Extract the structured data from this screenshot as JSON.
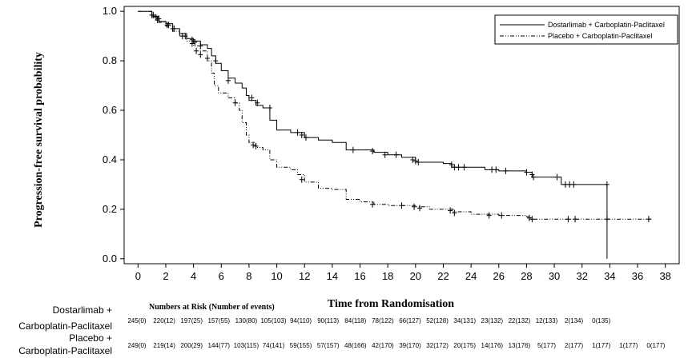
{
  "chart_data": {
    "type": "line",
    "xlabel": "Time from Randomisation",
    "ylabel": "Progression-free survival probability",
    "xlim": [
      -1,
      39
    ],
    "ylim": [
      -0.02,
      1.02
    ],
    "x_ticks": [
      "0",
      "2",
      "4",
      "6",
      "8",
      "10",
      "12",
      "14",
      "16",
      "18",
      "20",
      "22",
      "24",
      "26",
      "28",
      "30",
      "32",
      "34",
      "36",
      "38"
    ],
    "y_ticks": [
      "0.0",
      "0.2",
      "0.4",
      "0.6",
      "0.8",
      "1.0"
    ],
    "legend_position": "top-right",
    "series": [
      {
        "name": "Dostarlimab + Carboplatin-Paclitaxel",
        "color": "#000000",
        "points": [
          [
            0,
            1.0
          ],
          [
            1,
            0.98
          ],
          [
            1.5,
            0.96
          ],
          [
            2,
            0.95
          ],
          [
            2.5,
            0.93
          ],
          [
            3,
            0.91
          ],
          [
            3.5,
            0.89
          ],
          [
            4,
            0.88
          ],
          [
            4.5,
            0.865
          ],
          [
            5,
            0.85
          ],
          [
            5.3,
            0.82
          ],
          [
            5.6,
            0.79
          ],
          [
            6,
            0.76
          ],
          [
            6.5,
            0.73
          ],
          [
            7,
            0.71
          ],
          [
            7.5,
            0.69
          ],
          [
            7.8,
            0.66
          ],
          [
            8,
            0.64
          ],
          [
            8.5,
            0.62
          ],
          [
            9,
            0.61
          ],
          [
            9.5,
            0.56
          ],
          [
            10,
            0.52
          ],
          [
            11,
            0.51
          ],
          [
            12,
            0.49
          ],
          [
            13,
            0.48
          ],
          [
            14,
            0.47
          ],
          [
            15,
            0.44
          ],
          [
            16,
            0.44
          ],
          [
            17,
            0.43
          ],
          [
            18,
            0.42
          ],
          [
            19,
            0.41
          ],
          [
            20,
            0.39
          ],
          [
            22,
            0.385
          ],
          [
            22.6,
            0.37
          ],
          [
            24,
            0.37
          ],
          [
            25,
            0.36
          ],
          [
            26,
            0.355
          ],
          [
            28,
            0.35
          ],
          [
            28.4,
            0.33
          ],
          [
            30,
            0.33
          ],
          [
            30.5,
            0.3
          ],
          [
            31,
            0.3
          ],
          [
            33.8,
            0.3
          ],
          [
            33.8,
            0.0
          ]
        ],
        "censors": [
          [
            1.1,
            0.985
          ],
          [
            1.3,
            0.975
          ],
          [
            1.5,
            0.97
          ],
          [
            2.2,
            0.945
          ],
          [
            2.6,
            0.93
          ],
          [
            3.4,
            0.9
          ],
          [
            3.9,
            0.885
          ],
          [
            4.1,
            0.875
          ],
          [
            4.5,
            0.86
          ],
          [
            5.6,
            0.8
          ],
          [
            6.5,
            0.72
          ],
          [
            8.2,
            0.65
          ],
          [
            8.6,
            0.63
          ],
          [
            9.5,
            0.61
          ],
          [
            11.5,
            0.51
          ],
          [
            11.8,
            0.5
          ],
          [
            12.1,
            0.49
          ],
          [
            15.5,
            0.44
          ],
          [
            16.9,
            0.435
          ],
          [
            17.8,
            0.42
          ],
          [
            18.6,
            0.42
          ],
          [
            19.8,
            0.4
          ],
          [
            20,
            0.395
          ],
          [
            20.2,
            0.39
          ],
          [
            22.6,
            0.38
          ],
          [
            22.8,
            0.37
          ],
          [
            23.1,
            0.37
          ],
          [
            23.5,
            0.37
          ],
          [
            25.5,
            0.36
          ],
          [
            25.8,
            0.36
          ],
          [
            26.5,
            0.355
          ],
          [
            28,
            0.35
          ],
          [
            28.4,
            0.34
          ],
          [
            28.5,
            0.33
          ],
          [
            30.2,
            0.33
          ],
          [
            30.8,
            0.3
          ],
          [
            31.1,
            0.3
          ],
          [
            31.4,
            0.3
          ],
          [
            33.8,
            0.3
          ]
        ]
      },
      {
        "name": "Placebo + Carboplatin-Paclitaxel",
        "color": "#000000",
        "points": [
          [
            0,
            1.0
          ],
          [
            1,
            0.98
          ],
          [
            1.5,
            0.955
          ],
          [
            2,
            0.94
          ],
          [
            2.5,
            0.92
          ],
          [
            3,
            0.9
          ],
          [
            3.5,
            0.88
          ],
          [
            4,
            0.86
          ],
          [
            4.5,
            0.84
          ],
          [
            5,
            0.8
          ],
          [
            5.3,
            0.75
          ],
          [
            5.5,
            0.7
          ],
          [
            5.8,
            0.67
          ],
          [
            6.5,
            0.65
          ],
          [
            7,
            0.63
          ],
          [
            7.3,
            0.6
          ],
          [
            7.5,
            0.55
          ],
          [
            7.8,
            0.5
          ],
          [
            8,
            0.47
          ],
          [
            8.5,
            0.45
          ],
          [
            9,
            0.44
          ],
          [
            9.5,
            0.4
          ],
          [
            10,
            0.37
          ],
          [
            11,
            0.36
          ],
          [
            11.5,
            0.34
          ],
          [
            12,
            0.31
          ],
          [
            13,
            0.285
          ],
          [
            14,
            0.28
          ],
          [
            15,
            0.24
          ],
          [
            16,
            0.23
          ],
          [
            17,
            0.22
          ],
          [
            18,
            0.215
          ],
          [
            19,
            0.215
          ],
          [
            20,
            0.21
          ],
          [
            21,
            0.2
          ],
          [
            22,
            0.2
          ],
          [
            22.7,
            0.19
          ],
          [
            24,
            0.18
          ],
          [
            26,
            0.175
          ],
          [
            28,
            0.17
          ],
          [
            28.3,
            0.16
          ],
          [
            37,
            0.16
          ]
        ],
        "censors": [
          [
            1.0,
            0.985
          ],
          [
            1.4,
            0.965
          ],
          [
            2.1,
            0.945
          ],
          [
            2.5,
            0.93
          ],
          [
            3.2,
            0.9
          ],
          [
            3.9,
            0.87
          ],
          [
            4.2,
            0.84
          ],
          [
            4.5,
            0.825
          ],
          [
            5.0,
            0.81
          ],
          [
            7.0,
            0.63
          ],
          [
            8.3,
            0.46
          ],
          [
            8.5,
            0.455
          ],
          [
            11.8,
            0.32
          ],
          [
            16.9,
            0.22
          ],
          [
            19.0,
            0.215
          ],
          [
            19.9,
            0.21
          ],
          [
            20.3,
            0.205
          ],
          [
            22.5,
            0.195
          ],
          [
            22.8,
            0.185
          ],
          [
            25.3,
            0.175
          ],
          [
            26.2,
            0.175
          ],
          [
            28.2,
            0.165
          ],
          [
            28.4,
            0.16
          ],
          [
            31.0,
            0.16
          ],
          [
            31.5,
            0.16
          ],
          [
            33.8,
            0.16
          ],
          [
            36.8,
            0.16
          ]
        ]
      }
    ]
  },
  "risk_table": {
    "title": "Numbers at Risk (Number of events)",
    "rows": [
      {
        "label_line1": "Dostarlimab +",
        "label_line2": "Carboplatin-Paclitaxel",
        "values": [
          "245(0)",
          "220(12)",
          "197(25)",
          "157(55)",
          "130(80)",
          "105(103)",
          "94(110)",
          "90(113)",
          "84(118)",
          "78(122)",
          "66(127)",
          "52(128)",
          "34(131)",
          "23(132)",
          "22(132)",
          "12(133)",
          "2(134)",
          "0(135)"
        ]
      },
      {
        "label_line1": "Placebo +",
        "label_line2": "Carboplatin-Paclitaxel",
        "values": [
          "249(0)",
          "219(14)",
          "200(29)",
          "144(77)",
          "103(115)",
          "74(141)",
          "59(155)",
          "57(157)",
          "48(166)",
          "42(170)",
          "39(170)",
          "32(172)",
          "20(175)",
          "14(176)",
          "13(176)",
          "5(177)",
          "2(177)",
          "1(177)",
          "1(177)",
          "0(177)"
        ]
      }
    ]
  }
}
